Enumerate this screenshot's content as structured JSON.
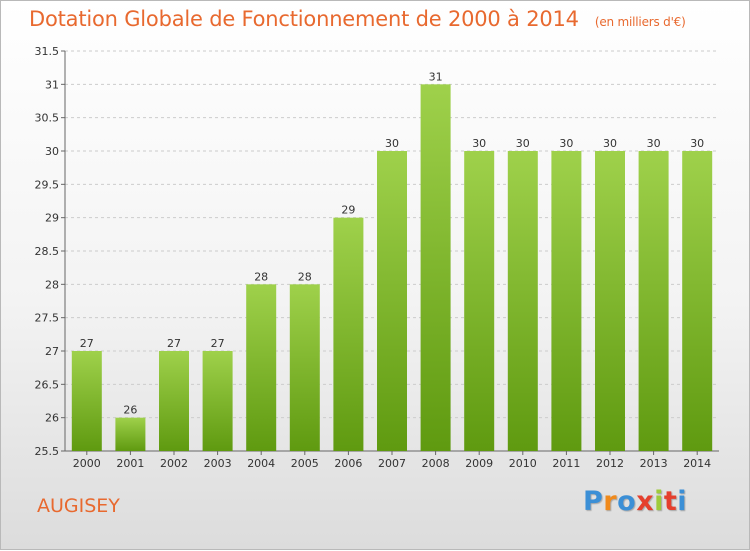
{
  "header": {
    "title": "Dotation Globale de Fonctionnement de 2000 à 2014",
    "unit": "(en milliers d'€)"
  },
  "footer": {
    "town": "AUGISEY",
    "logo": [
      "P",
      "r",
      "o",
      "x",
      "i",
      "t",
      "i"
    ]
  },
  "colors": {
    "title": "#e8692f",
    "bar_top": "#9fd14b",
    "bar_bottom": "#5f9a10",
    "grid": "#cccccc"
  },
  "chart_data": {
    "type": "bar",
    "title": "Dotation Globale de Fonctionnement de 2000 à 2014",
    "subtitle": "(en milliers d'€)",
    "xlabel": "",
    "ylabel": "",
    "categories": [
      "2000",
      "2001",
      "2002",
      "2003",
      "2004",
      "2005",
      "2006",
      "2007",
      "2008",
      "2009",
      "2010",
      "2011",
      "2012",
      "2013",
      "2014"
    ],
    "values": [
      27,
      26,
      27,
      27,
      28,
      28,
      29,
      30,
      31,
      30,
      30,
      30,
      30,
      30,
      30
    ],
    "ylim": [
      25.5,
      31.5
    ],
    "yticks": [
      "25.5",
      "26",
      "26.5",
      "27",
      "27.5",
      "28",
      "28.5",
      "29",
      "29.5",
      "30",
      "30.5",
      "31",
      "31.5"
    ],
    "grid": true,
    "legend": "none"
  }
}
